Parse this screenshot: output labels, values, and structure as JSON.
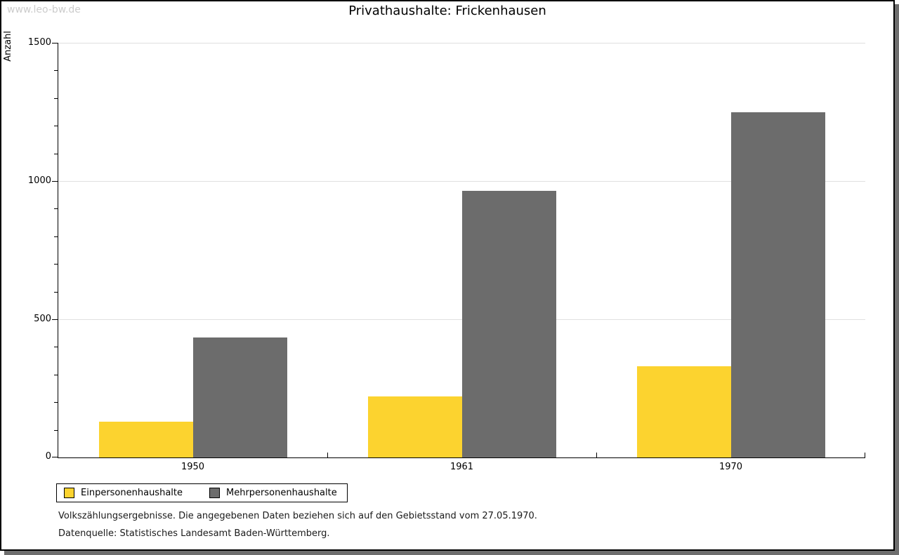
{
  "watermark": "www.leo-bw.de",
  "title": "Privathaushalte: Frickenhausen",
  "footnotes": {
    "line1": "Volkszählungsergebnisse. Die angegebenen Daten beziehen sich auf den Gebietsstand vom 27.05.1970.",
    "line2": "Datenquelle: Statistisches Landesamt Baden-Württemberg."
  },
  "chart_data": {
    "type": "bar",
    "title": "Privathaushalte: Frickenhausen",
    "categories": [
      "1950",
      "1961",
      "1970"
    ],
    "series": [
      {
        "name": "Einpersonenhaushalte",
        "color": "#fcd32f",
        "values": [
          130,
          220,
          330
        ]
      },
      {
        "name": "Mehrpersonenhaushalte",
        "color": "#6c6c6c",
        "values": [
          435,
          965,
          1250
        ]
      }
    ],
    "xlabel": "",
    "ylabel": "Anzahl",
    "ylim": [
      0,
      1500
    ],
    "yticks": [
      0,
      500,
      1000,
      1500
    ],
    "y_minor_step": 100,
    "grid": true,
    "legend_position": "bottom-left"
  },
  "colors": {
    "bar_yellow": "#fcd32f",
    "bar_gray": "#6c6c6c",
    "gridline": "#e0e0e0",
    "axis": "#000000",
    "watermark": "#cccccc",
    "card_shadow": "#6e6e6e",
    "background": "#ffffff"
  }
}
